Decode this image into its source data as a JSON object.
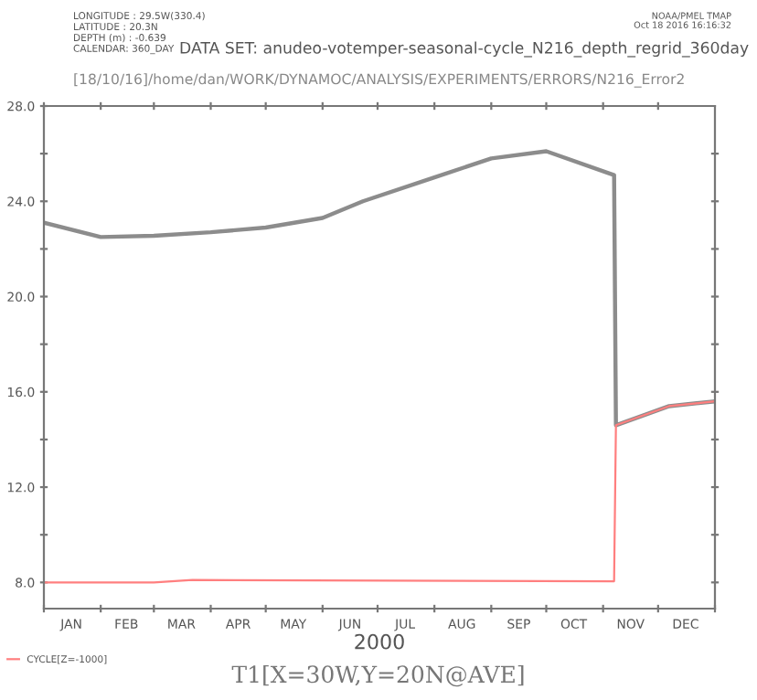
{
  "chart_data": {
    "type": "line",
    "title": "DATA SET: anudeo-votemper-seasonal-cycle_N216_depth_regrid_360day",
    "subtitle": "[18/10/16]/home/dan/WORK/DYNAMOC/ANALYSIS/EXPERIMENTS/ERRORS/N216_Error2",
    "xlabel": "2000",
    "annotations": [
      "LONGITUDE : 29.5W(330.4)",
      "LATITUDE : 20.3N",
      "DEPTH (m) : -0.639",
      "CALENDAR: 360_DAY",
      "NOAA/PMEL TMAP",
      "Oct 18 2016 16:16:32",
      "T1[X=30W,Y=20N@AVE]"
    ],
    "series": [
      {
        "color": "#8c8c8c",
        "x": [
          "2000-01-01",
          "2000-02-01",
          "2000-03-01",
          "2000-04-01",
          "2000-05-01",
          "2000-06-01",
          "2000-06-23",
          "2000-08-01",
          "2000-09-01",
          "2000-10-01",
          "2000-11-07",
          "2000-11-08",
          "2000-12-07",
          "2001-01-01"
        ],
        "values": [
          23.1,
          22.5,
          22.55,
          22.7,
          22.9,
          23.3,
          24.0,
          25.0,
          25.8,
          26.1,
          25.1,
          14.6,
          15.4,
          15.6
        ]
      },
      {
        "name": "CYCLE[Z=-1000]",
        "color": "#ff7f7f",
        "x": [
          "2000-01-01",
          "2000-03-01",
          "2000-03-22",
          "2000-11-07",
          "2000-11-08",
          "2000-12-07",
          "2001-01-01"
        ],
        "values": [
          8.0,
          8.0,
          8.1,
          8.05,
          14.6,
          15.4,
          15.6
        ]
      }
    ],
    "xlim": [
      "2000-01-01",
      "2001-01-01"
    ],
    "xticks": [
      {
        "value": "2000-01-01",
        "label": null
      },
      {
        "value": "2000-02-01",
        "label": null
      },
      {
        "value": "2000-03-01",
        "label": null
      },
      {
        "value": "2000-04-01",
        "label": null
      },
      {
        "value": "2000-05-01",
        "label": null
      },
      {
        "value": "2000-06-01",
        "label": null
      },
      {
        "value": "2000-07-01",
        "label": null
      },
      {
        "value": "2000-08-01",
        "label": null
      },
      {
        "value": "2000-09-01",
        "label": null
      },
      {
        "value": "2000-10-01",
        "label": null
      },
      {
        "value": "2000-11-01",
        "label": null
      },
      {
        "value": "2000-12-01",
        "label": null
      },
      {
        "value": "2001-01-01",
        "label": null
      },
      {
        "value": "2000-01-16",
        "label": "JAN"
      },
      {
        "value": "2000-02-15",
        "label": "FEB"
      },
      {
        "value": "2000-03-16",
        "label": "MAR"
      },
      {
        "value": "2000-04-16",
        "label": "APR"
      },
      {
        "value": "2000-05-16",
        "label": "MAY"
      },
      {
        "value": "2000-06-16",
        "label": "JUN"
      },
      {
        "value": "2000-07-16",
        "label": "JUL"
      },
      {
        "value": "2000-08-16",
        "label": "AUG"
      },
      {
        "value": "2000-09-16",
        "label": "SEP"
      },
      {
        "value": "2000-10-16",
        "label": "OCT"
      },
      {
        "value": "2000-11-16",
        "label": "NOV"
      },
      {
        "value": "2000-12-16",
        "label": "DEC"
      }
    ],
    "ylim": [
      6.9,
      28
    ],
    "yticks": [
      {
        "value": 8,
        "label": "8.0"
      },
      {
        "value": 10,
        "label": null
      },
      {
        "value": 12,
        "label": "12.0"
      },
      {
        "value": 14,
        "label": null
      },
      {
        "value": 16,
        "label": "16.0"
      },
      {
        "value": 18,
        "label": null
      },
      {
        "value": 20,
        "label": "20.0"
      },
      {
        "value": 22,
        "label": null
      },
      {
        "value": 24,
        "label": "24.0"
      },
      {
        "value": 26,
        "label": null
      },
      {
        "value": 28,
        "label": "28.0"
      }
    ],
    "grid": false,
    "legend": "bottom left",
    "marker": "none",
    "line_style": "solid"
  }
}
